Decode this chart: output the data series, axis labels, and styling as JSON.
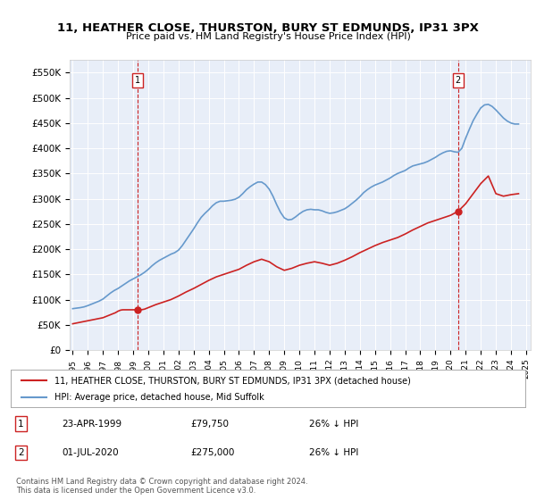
{
  "title": "11, HEATHER CLOSE, THURSTON, BURY ST EDMUNDS, IP31 3PX",
  "subtitle": "Price paid vs. HM Land Registry's House Price Index (HPI)",
  "background_color": "#e8eef8",
  "plot_bg_color": "#e8eef8",
  "ylim": [
    0,
    575000
  ],
  "yticks": [
    0,
    50000,
    100000,
    150000,
    200000,
    250000,
    300000,
    350000,
    400000,
    450000,
    500000,
    550000
  ],
  "ytick_labels": [
    "£0",
    "£50K",
    "£100K",
    "£150K",
    "£200K",
    "£250K",
    "£300K",
    "£350K",
    "£400K",
    "£450K",
    "£500K",
    "£550K"
  ],
  "xlabel_years": [
    "1995",
    "1996",
    "1997",
    "1998",
    "1999",
    "2000",
    "2001",
    "2002",
    "2003",
    "2004",
    "2005",
    "2006",
    "2007",
    "2008",
    "2009",
    "2010",
    "2011",
    "2012",
    "2013",
    "2014",
    "2015",
    "2016",
    "2017",
    "2018",
    "2019",
    "2020",
    "2021",
    "2022",
    "2023",
    "2024",
    "2025"
  ],
  "hpi_color": "#6699cc",
  "price_color": "#cc2222",
  "marker1_year": 1999.31,
  "marker1_price": 79750,
  "marker2_year": 2020.5,
  "marker2_price": 275000,
  "legend_line1": "11, HEATHER CLOSE, THURSTON, BURY ST EDMUNDS, IP31 3PX (detached house)",
  "legend_line2": "HPI: Average price, detached house, Mid Suffolk",
  "table_row1": [
    "1",
    "23-APR-1999",
    "£79,750",
    "26% ↓ HPI"
  ],
  "table_row2": [
    "2",
    "01-JUL-2020",
    "£275,000",
    "26% ↓ HPI"
  ],
  "footer": "Contains HM Land Registry data © Crown copyright and database right 2024.\nThis data is licensed under the Open Government Licence v3.0.",
  "hpi_data_x": [
    1995.0,
    1995.25,
    1995.5,
    1995.75,
    1996.0,
    1996.25,
    1996.5,
    1996.75,
    1997.0,
    1997.25,
    1997.5,
    1997.75,
    1998.0,
    1998.25,
    1998.5,
    1998.75,
    1999.0,
    1999.25,
    1999.5,
    1999.75,
    2000.0,
    2000.25,
    2000.5,
    2000.75,
    2001.0,
    2001.25,
    2001.5,
    2001.75,
    2002.0,
    2002.25,
    2002.5,
    2002.75,
    2003.0,
    2003.25,
    2003.5,
    2003.75,
    2004.0,
    2004.25,
    2004.5,
    2004.75,
    2005.0,
    2005.25,
    2005.5,
    2005.75,
    2006.0,
    2006.25,
    2006.5,
    2006.75,
    2007.0,
    2007.25,
    2007.5,
    2007.75,
    2008.0,
    2008.25,
    2008.5,
    2008.75,
    2009.0,
    2009.25,
    2009.5,
    2009.75,
    2010.0,
    2010.25,
    2010.5,
    2010.75,
    2011.0,
    2011.25,
    2011.5,
    2011.75,
    2012.0,
    2012.25,
    2012.5,
    2012.75,
    2013.0,
    2013.25,
    2013.5,
    2013.75,
    2014.0,
    2014.25,
    2014.5,
    2014.75,
    2015.0,
    2015.25,
    2015.5,
    2015.75,
    2016.0,
    2016.25,
    2016.5,
    2016.75,
    2017.0,
    2017.25,
    2017.5,
    2017.75,
    2018.0,
    2018.25,
    2018.5,
    2018.75,
    2019.0,
    2019.25,
    2019.5,
    2019.75,
    2020.0,
    2020.25,
    2020.5,
    2020.75,
    2021.0,
    2021.25,
    2021.5,
    2021.75,
    2022.0,
    2022.25,
    2022.5,
    2022.75,
    2023.0,
    2023.25,
    2023.5,
    2023.75,
    2024.0,
    2024.25,
    2024.5
  ],
  "hpi_data_y": [
    82000,
    83000,
    84000,
    85500,
    88000,
    91000,
    94000,
    97000,
    101000,
    107000,
    113000,
    118000,
    122000,
    127000,
    132000,
    137000,
    141000,
    145000,
    149000,
    154000,
    160000,
    167000,
    173000,
    178000,
    182000,
    186000,
    190000,
    193000,
    198000,
    207000,
    218000,
    229000,
    240000,
    252000,
    263000,
    271000,
    278000,
    286000,
    292000,
    295000,
    295000,
    296000,
    297000,
    299000,
    303000,
    310000,
    318000,
    324000,
    329000,
    333000,
    333000,
    328000,
    319000,
    305000,
    288000,
    273000,
    262000,
    258000,
    259000,
    264000,
    270000,
    275000,
    278000,
    279000,
    278000,
    278000,
    276000,
    273000,
    271000,
    272000,
    274000,
    277000,
    280000,
    285000,
    291000,
    297000,
    304000,
    312000,
    318000,
    323000,
    327000,
    330000,
    333000,
    337000,
    341000,
    346000,
    350000,
    353000,
    356000,
    361000,
    365000,
    367000,
    369000,
    371000,
    374000,
    378000,
    382000,
    387000,
    391000,
    394000,
    395000,
    393000,
    392000,
    400000,
    420000,
    438000,
    455000,
    468000,
    480000,
    486000,
    487000,
    483000,
    476000,
    468000,
    460000,
    454000,
    450000,
    448000,
    448000
  ],
  "price_data_x": [
    1995.0,
    1995.083,
    1995.167,
    1995.25,
    1995.333,
    1995.417,
    1995.5,
    1995.583,
    1995.667,
    1995.75,
    1995.833,
    1995.917,
    1996.0,
    1996.083,
    1996.167,
    1996.25,
    1996.333,
    1996.417,
    1996.5,
    1996.583,
    1996.667,
    1996.75,
    1996.833,
    1996.917,
    1997.0,
    1997.083,
    1997.167,
    1997.25,
    1997.333,
    1997.417,
    1997.5,
    1997.583,
    1997.667,
    1997.75,
    1997.833,
    1997.917,
    1998.0,
    1998.083,
    1998.167,
    1998.25,
    1998.333,
    1998.417,
    1998.5,
    1998.583,
    1998.667,
    1998.75,
    1998.833,
    1998.917,
    1999.0,
    1999.083,
    1999.167,
    1999.25,
    1999.333,
    1999.417,
    1999.5,
    1999.583,
    1999.667,
    1999.75,
    1999.833,
    1999.917,
    2000.0,
    2000.5,
    2001.0,
    2001.5,
    2002.0,
    2002.5,
    2003.0,
    2003.5,
    2004.0,
    2004.5,
    2005.0,
    2005.5,
    2006.0,
    2006.5,
    2007.0,
    2007.5,
    2008.0,
    2008.5,
    2009.0,
    2009.5,
    2010.0,
    2010.5,
    2011.0,
    2011.5,
    2012.0,
    2012.5,
    2013.0,
    2013.5,
    2014.0,
    2014.5,
    2015.0,
    2015.5,
    2016.0,
    2016.5,
    2017.0,
    2017.5,
    2018.0,
    2018.5,
    2019.0,
    2019.5,
    2020.0,
    2020.5,
    2021.0,
    2021.5,
    2022.0,
    2022.5,
    2023.0,
    2023.5,
    2024.0,
    2024.5
  ],
  "price_data_y": [
    52000,
    52500,
    53000,
    53500,
    54000,
    54500,
    55000,
    55500,
    56000,
    56500,
    57000,
    57500,
    58000,
    58500,
    59000,
    59500,
    60000,
    60500,
    61000,
    61500,
    62000,
    62500,
    63000,
    63500,
    64000,
    65000,
    66000,
    67000,
    68000,
    69000,
    70000,
    71000,
    72000,
    73000,
    74000,
    75500,
    77000,
    78000,
    79000,
    79500,
    79750,
    79750,
    79750,
    79750,
    79750,
    79750,
    79750,
    79750,
    79750,
    79750,
    79750,
    79750,
    79750,
    79750,
    79750,
    80000,
    80500,
    81000,
    82000,
    83000,
    84000,
    90000,
    95000,
    100000,
    107000,
    115000,
    122000,
    130000,
    138000,
    145000,
    150000,
    155000,
    160000,
    168000,
    175000,
    180000,
    175000,
    165000,
    158000,
    162000,
    168000,
    172000,
    175000,
    172000,
    168000,
    172000,
    178000,
    185000,
    193000,
    200000,
    207000,
    213000,
    218000,
    223000,
    230000,
    238000,
    245000,
    252000,
    257000,
    262000,
    267000,
    275000,
    290000,
    310000,
    330000,
    345000,
    310000,
    305000,
    308000,
    310000
  ]
}
